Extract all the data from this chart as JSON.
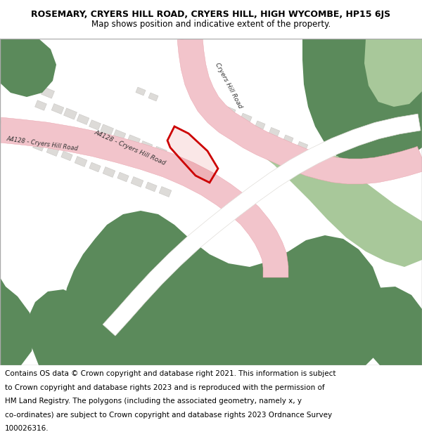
{
  "title_line1": "ROSEMARY, CRYERS HILL ROAD, CRYERS HILL, HIGH WYCOMBE, HP15 6JS",
  "title_line2": "Map shows position and indicative extent of the property.",
  "footer_lines": [
    "Contains OS data © Crown copyright and database right 2021. This information is subject",
    "to Crown copyright and database rights 2023 and is reproduced with the permission of",
    "HM Land Registry. The polygons (including the associated geometry, namely x, y",
    "co-ordinates) are subject to Crown copyright and database rights 2023 Ordnance Survey",
    "100026316."
  ],
  "map_bg": "#f7f5f2",
  "road_color": "#f2c4cb",
  "road_edge": "#e8a0aa",
  "green_dark": "#5b8a5b",
  "green_light": "#a8c89a",
  "building_color": "#dddbd8",
  "building_edge": "#c8c6c3",
  "path_color": "#ffffff",
  "path_edge": "#e0ddd8",
  "prop_fill": "#cc000022",
  "prop_edge": "#cc0000",
  "label_color": "#333333",
  "title_fontsize": 9,
  "footer_fontsize": 7.5
}
